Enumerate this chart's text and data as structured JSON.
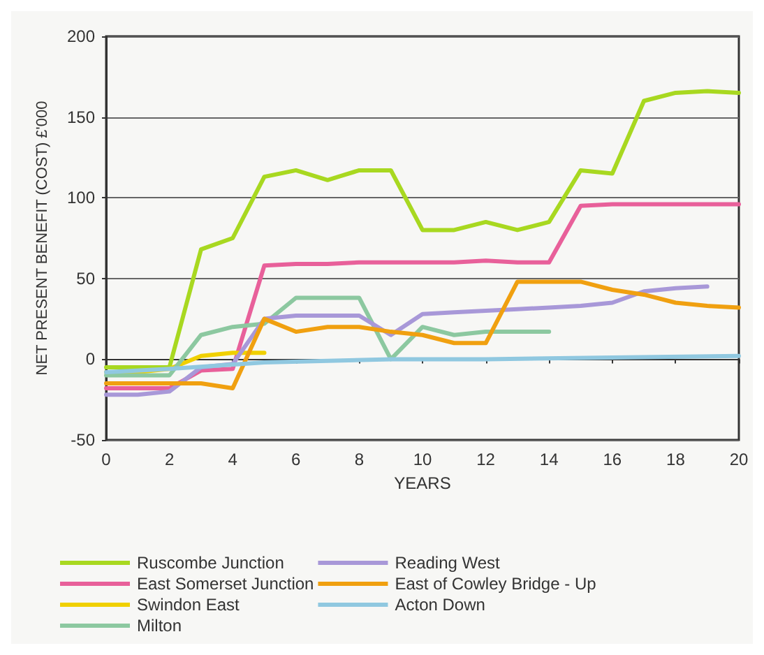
{
  "chart_data": {
    "type": "line",
    "xlabel": "YEARS",
    "ylabel": "NET PRESENT BENEFIT (COST) £'000",
    "xlim": [
      0,
      20
    ],
    "xticks": [
      0,
      2,
      4,
      6,
      8,
      10,
      12,
      14,
      16,
      18,
      20
    ],
    "ylim": [
      -50,
      200
    ],
    "yticks": [
      -50,
      0,
      50,
      100,
      150,
      200
    ],
    "grid": "y",
    "legend": "bottom",
    "marker": "none",
    "line_style": "solid",
    "series": [
      {
        "name": "Ruscombe Junction",
        "color": "#a8d820",
        "x": [
          0,
          1,
          2,
          3,
          4,
          5,
          6,
          7,
          8,
          9,
          10,
          11,
          12,
          13,
          14,
          15,
          16,
          17,
          18,
          19,
          20
        ],
        "values": [
          -5,
          -5,
          -5,
          68,
          75,
          113,
          117,
          111,
          117,
          117,
          80,
          80,
          85,
          80,
          85,
          117,
          115,
          160,
          165,
          166,
          165
        ]
      },
      {
        "name": "East Somerset Junction",
        "color": "#e8609a",
        "x": [
          0,
          1,
          2,
          3,
          4,
          5,
          6,
          7,
          8,
          9,
          10,
          11,
          12,
          13,
          14,
          15,
          16,
          17,
          18,
          19,
          20
        ],
        "values": [
          -18,
          -18,
          -18,
          -7,
          -6,
          58,
          59,
          59,
          60,
          60,
          60,
          60,
          61,
          60,
          60,
          95,
          96,
          96,
          96,
          96,
          96
        ]
      },
      {
        "name": "Swindon East",
        "color": "#f0d000",
        "x": [
          0,
          1,
          2,
          3,
          4,
          5
        ],
        "values": [
          -8,
          -8,
          -6,
          2,
          4,
          4
        ]
      },
      {
        "name": "Milton",
        "color": "#8cc8a0",
        "x": [
          0,
          1,
          2,
          3,
          4,
          5,
          6,
          7,
          8,
          9,
          10,
          11,
          12,
          13,
          14
        ],
        "values": [
          -10,
          -10,
          -10,
          15,
          20,
          22,
          38,
          38,
          38,
          0,
          20,
          15,
          17,
          17,
          17
        ]
      },
      {
        "name": "Reading West",
        "color": "#a898d8",
        "x": [
          0,
          1,
          2,
          3,
          4,
          5,
          6,
          7,
          8,
          9,
          10,
          11,
          12,
          13,
          14,
          15,
          16,
          17,
          18,
          19
        ],
        "values": [
          -22,
          -22,
          -20,
          -5,
          -3,
          25,
          27,
          27,
          27,
          15,
          28,
          29,
          30,
          31,
          32,
          33,
          35,
          42,
          44,
          45
        ]
      },
      {
        "name": "East of Cowley Bridge - Up",
        "color": "#f0a010",
        "x": [
          0,
          1,
          2,
          3,
          4,
          5,
          6,
          7,
          8,
          9,
          10,
          11,
          12,
          13,
          14,
          15,
          16,
          17,
          18,
          19,
          20
        ],
        "values": [
          -15,
          -15,
          -15,
          -15,
          -18,
          25,
          17,
          20,
          20,
          17,
          15,
          10,
          10,
          48,
          48,
          48,
          43,
          40,
          35,
          33,
          32
        ]
      },
      {
        "name": "Acton Down",
        "color": "#90c8e0",
        "x": [
          0,
          2,
          5,
          9,
          12,
          16,
          20
        ],
        "values": [
          -8,
          -6,
          -2,
          0,
          0,
          1,
          2
        ]
      }
    ]
  }
}
